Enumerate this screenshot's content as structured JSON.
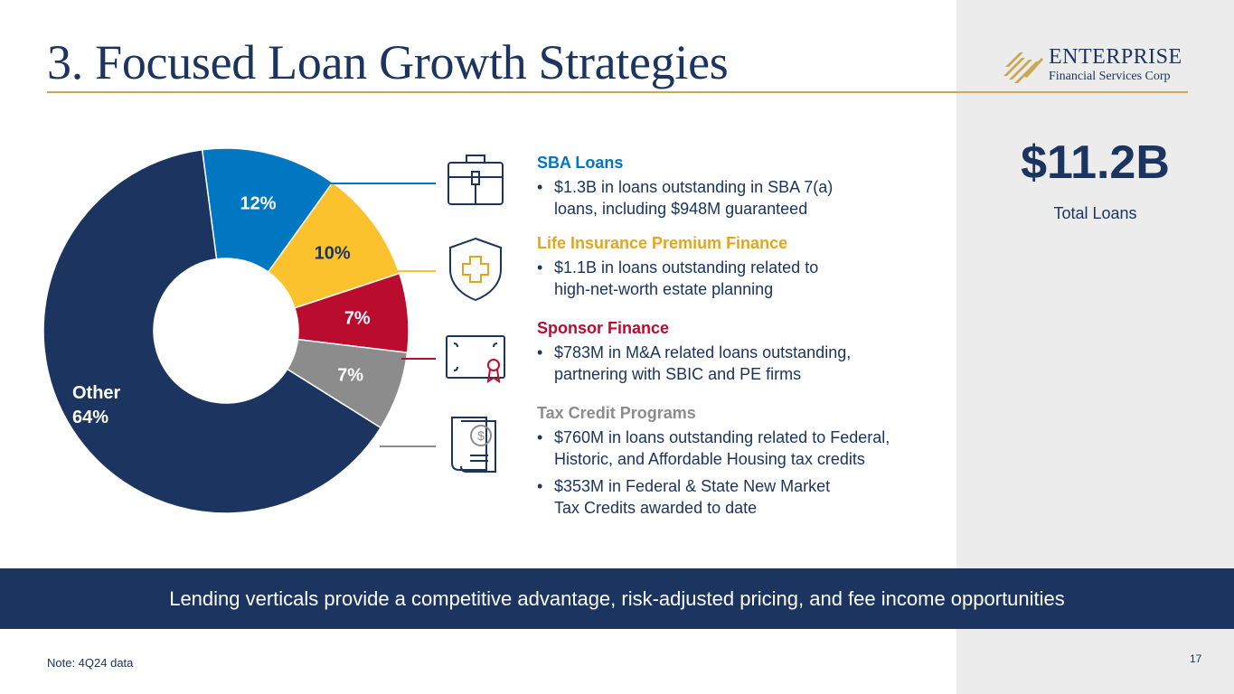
{
  "slide": {
    "title": "3. Focused Loan Growth Strategies",
    "logo": {
      "line1": "ENTERPRISE",
      "line2": "Financial Services Corp"
    },
    "total": {
      "value": "$11.2B",
      "label": "Total Loans"
    },
    "banner": "Lending verticals provide a competitive advantage, risk-adjusted pricing, and fee income opportunities",
    "note": "Note: 4Q24 data",
    "page_number": "17"
  },
  "colors": {
    "navy": "#1b3560",
    "blue": "#0077c0",
    "gold": "#fcc22e",
    "red": "#ba0c2f",
    "gray": "#8c8c8c",
    "accent_rule": "#c9a856"
  },
  "verticals": [
    {
      "title": "SBA Loans",
      "color": "#0077c0",
      "icon": "briefcase-icon",
      "bullets": [
        {
          "lines": [
            "$1.3B in loans outstanding in SBA 7(a)",
            "loans, including $948M guaranteed"
          ]
        }
      ]
    },
    {
      "title": "Life Insurance Premium Finance",
      "color": "#e3a51b",
      "icon": "shield-plus-icon",
      "bullets": [
        {
          "lines": [
            "$1.1B in loans outstanding related to",
            "high-net-worth estate planning"
          ]
        }
      ]
    },
    {
      "title": "Sponsor Finance",
      "color": "#ba0c2f",
      "icon": "certificate-icon",
      "bullets": [
        {
          "lines": [
            "$783M in M&A related loans outstanding,",
            "partnering with SBIC and PE firms"
          ]
        }
      ]
    },
    {
      "title": "Tax Credit Programs",
      "color": "#8c8c8c",
      "icon": "dollar-document-icon",
      "bullets": [
        {
          "lines": [
            "$760M in loans outstanding related to Federal,",
            "Historic, and Affordable Housing tax credits"
          ]
        },
        {
          "lines": [
            "$353M in Federal & State New Market",
            "Tax Credits awarded to date"
          ]
        }
      ]
    }
  ],
  "chart_data": {
    "type": "pie",
    "donut": true,
    "slices": [
      {
        "label": "12%",
        "value": 12,
        "color": "#0077c0"
      },
      {
        "label": "10%",
        "value": 10,
        "color": "#fcc22e"
      },
      {
        "label": "7%",
        "value": 7,
        "color": "#ba0c2f"
      },
      {
        "label": "7%",
        "value": 7,
        "color": "#8c8c8c"
      },
      {
        "label": "Other 64%",
        "name": "Other",
        "value": 64,
        "color": "#1b3560"
      }
    ]
  }
}
